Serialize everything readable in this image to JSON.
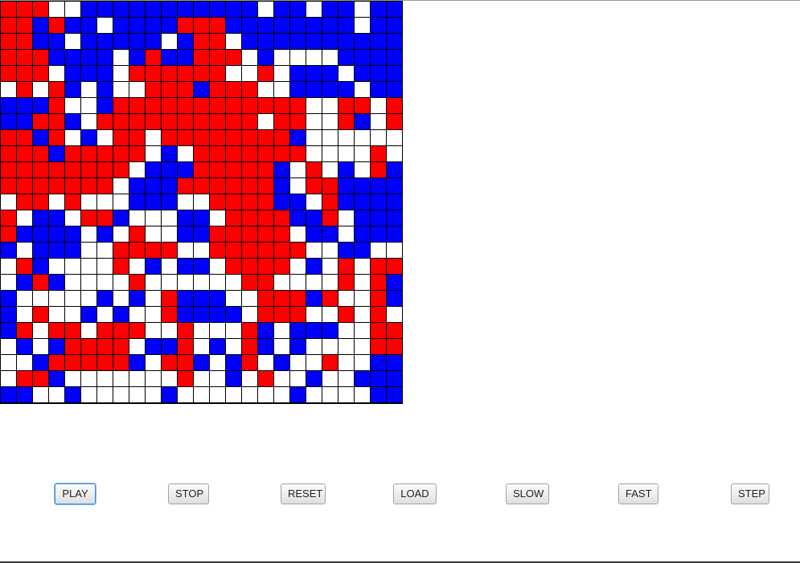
{
  "colors": {
    "R": "#ff0000",
    "B": "#0000ff",
    "W": "#ffffff",
    "grid_line": "#000000"
  },
  "board": {
    "rows": 25,
    "cols": 25,
    "cells": [
      "RRRWWBBBBBBBBBBBWBBWBBWBB",
      "RRBRBBWBBBBRRRBBBBBBBBWBB",
      "RRBBWBBBBBWBRRWBBBBBBBBBB",
      "RRRBBBBWBRBBRRRWBWWWWBBBB",
      "RRRWBBBWRRRRRRWWRWBBBWBBB",
      "WRWRBWBWWRRRBRRRWWBBBBWBB",
      "BBBRWWBRRRRRRRRRRRRWWRRWR",
      "BBRRBWRRRRRRRRRRWRRWWRBWR",
      "RRBRWBWRRWRRRRRRRRBWWWWWW",
      "RRRBRRRRRWBWRRRRRRRWWWWRW",
      "RRRRRRRRWBBBRRRRRBWRWBWRB",
      "RRRRRRRWBBBRRRRRRBWRRBBBB",
      "WRRWRWWWBBBWWRRRRBBWRBBBB",
      "RWBBWRRBWWWBBWRRRRBBRWBBB",
      "RBBBBWBWRWWBBRRRRRWBBWBBB",
      "BWBBBWWRRRRWWRRRRRRWWBBWW",
      "WRBWWWWRWBWBBWRRRRWBWRWRR",
      "WBRBWWWWRWWWWWWRRWWWWRWRB",
      "BWWWWWBWBWRBBBWWRRRBRWWRB",
      "BWRWWBWBWWRBBBBWRRRWWRWRW",
      "BRWRRWRRRWWRWWWRBWBBBWWRR",
      "WBWBRRRRWBBRWBWRBWBWWWWRR",
      "WWBRRRRRBWRRBWBRWBWWRWWBB",
      "WRRBWWWWWWWRWWBWRWWBWWBBB",
      "BBWWBWWWWWBWWWWWWWBWWWWBB"
    ]
  },
  "controls": {
    "play_label": "PLAY",
    "stop_label": "STOP",
    "reset_label": "RESET",
    "load_label": "LOAD",
    "slow_label": "SLOW",
    "fast_label": "FAST",
    "step_label": "STEP"
  }
}
